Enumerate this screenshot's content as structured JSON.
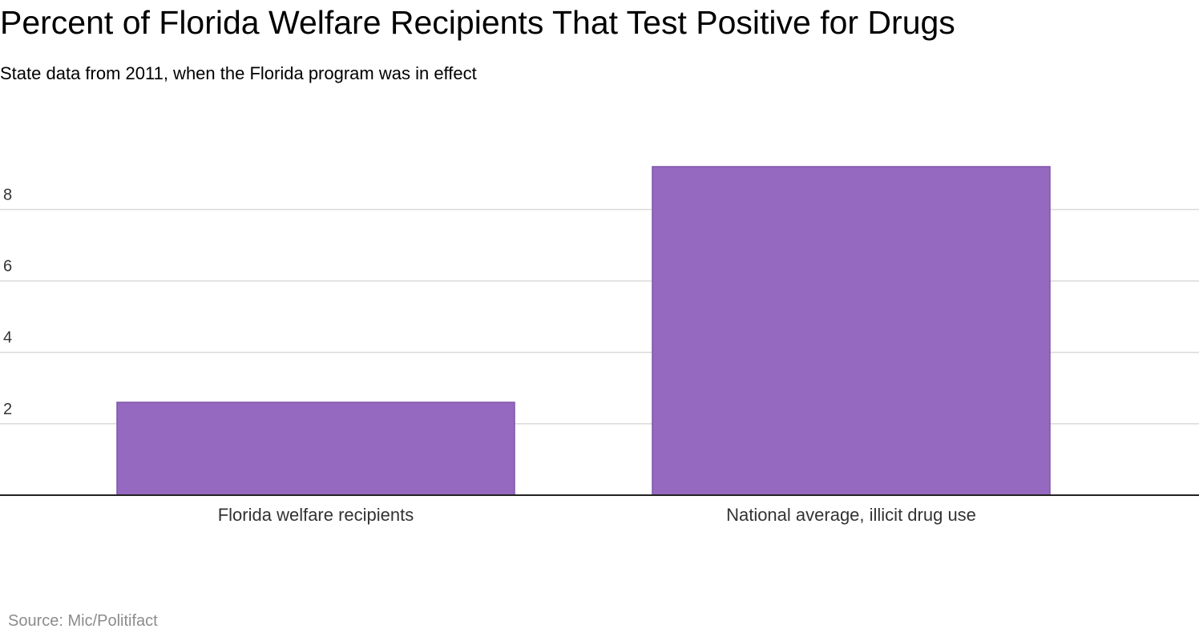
{
  "title": "Percent of Florida Welfare Recipients That Test Positive for Drugs",
  "subtitle": "State data from 2011, when the Florida program was in effect",
  "source": "Source: Mic/Politifact",
  "colors": {
    "bar": "#9569bf",
    "bar_stroke": "#7e55a8",
    "grid": "#d9d9d9",
    "axis": "#222222",
    "tick_text": "#333333",
    "source_text": "#8c8c8c"
  },
  "chart_data": {
    "type": "bar",
    "title": "Percent of Florida Welfare Recipients That Test Positive for Drugs",
    "subtitle": "State data from 2011, when the Florida program was in effect",
    "categories": [
      "Florida welfare recipients",
      "National average, illicit drug use"
    ],
    "values": [
      2.6,
      9.2
    ],
    "xlabel": "",
    "ylabel": "",
    "ylim": [
      0,
      9.2
    ],
    "yticks": [
      2,
      4,
      6,
      8
    ],
    "grid": true,
    "legend": "none"
  }
}
